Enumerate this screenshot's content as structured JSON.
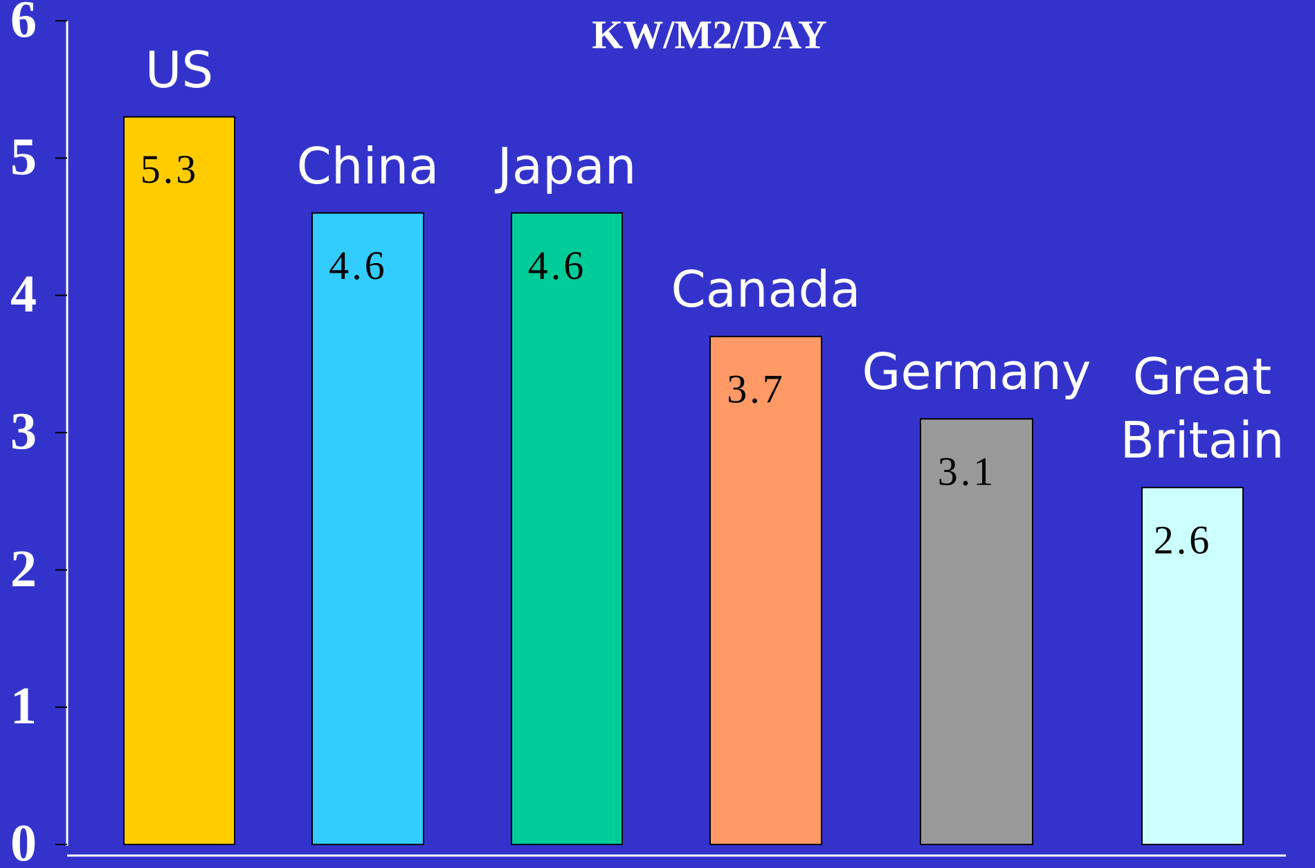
{
  "chart_data": {
    "type": "bar",
    "title": "KW/M2/DAY",
    "categories": [
      "US",
      "China",
      "Japan",
      "Canada",
      "Germany",
      "Great Britain"
    ],
    "values": [
      5.3,
      4.6,
      4.6,
      3.7,
      3.1,
      2.6
    ],
    "colors": [
      "#ffcc00",
      "#33ccff",
      "#00cc99",
      "#ff9966",
      "#999999",
      "#ccffff"
    ],
    "ylim": [
      0,
      6
    ],
    "yticks": [
      0,
      1,
      2,
      3,
      4,
      5,
      6
    ],
    "grid": false
  }
}
